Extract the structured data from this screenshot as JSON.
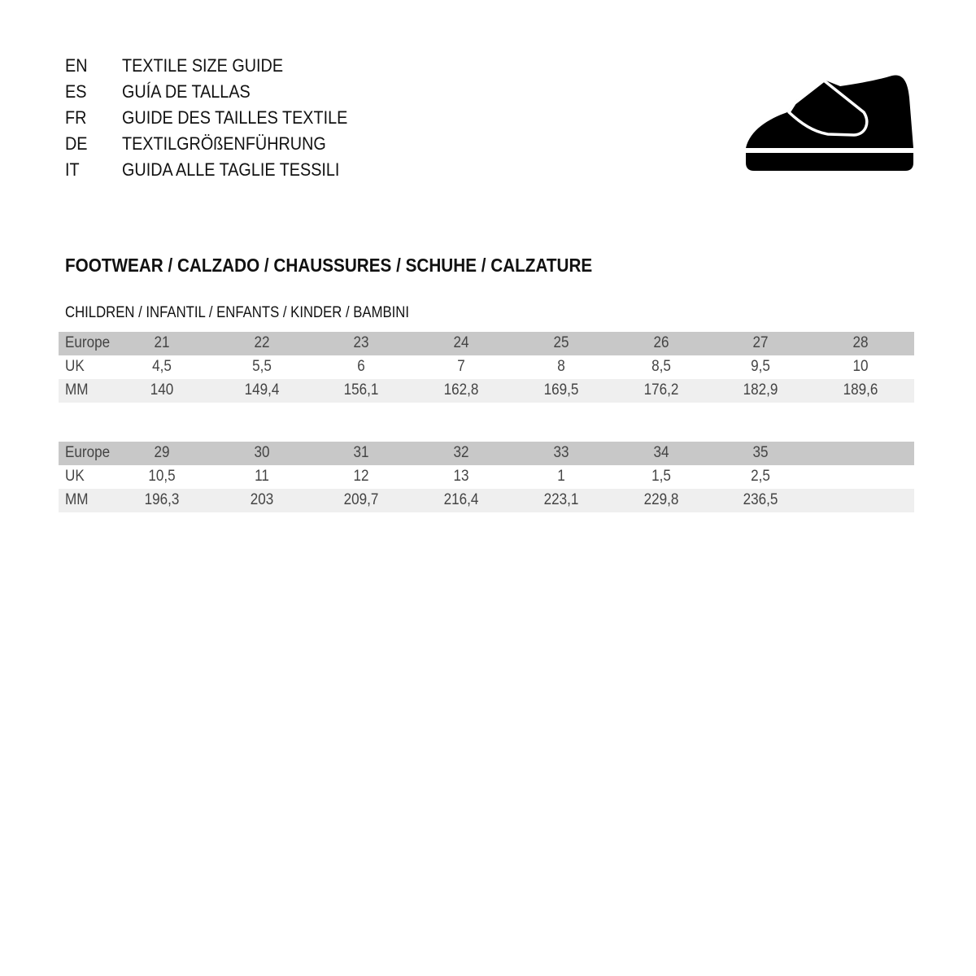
{
  "languages": [
    {
      "code": "EN",
      "text": "TEXTILE SIZE GUIDE"
    },
    {
      "code": "ES",
      "text": "GUÍA DE TALLAS"
    },
    {
      "code": "FR",
      "text": "GUIDE DES TAILLES TEXTILE"
    },
    {
      "code": "DE",
      "text": "TEXTILGRÖßENFÜHRUNG"
    },
    {
      "code": "IT",
      "text": "GUIDA ALLE TAGLIE TESSILI"
    }
  ],
  "icon": "shoe-icon",
  "title": "FOOTWEAR / CALZADO / CHAUSSURES / SCHUHE / CALZATURE",
  "subtitle": "CHILDREN / INFANTIL / ENFANTS / KINDER / BAMBINI",
  "tables": [
    {
      "rows": [
        {
          "label": "Europe",
          "values": [
            "21",
            "22",
            "23",
            "24",
            "25",
            "26",
            "27",
            "28"
          ]
        },
        {
          "label": "UK",
          "values": [
            "4,5",
            "5,5",
            "6",
            "7",
            "8",
            "8,5",
            "9,5",
            "10"
          ]
        },
        {
          "label": "MM",
          "values": [
            "140",
            "149,4",
            "156,1",
            "162,8",
            "169,5",
            "176,2",
            "182,9",
            "189,6"
          ]
        }
      ]
    },
    {
      "rows": [
        {
          "label": "Europe",
          "values": [
            "29",
            "30",
            "31",
            "32",
            "33",
            "34",
            "35"
          ]
        },
        {
          "label": "UK",
          "values": [
            "10,5",
            "11",
            "12",
            "13",
            "1",
            "1,5",
            "2,5"
          ]
        },
        {
          "label": "MM",
          "values": [
            "196,3",
            "203",
            "209,7",
            "216,4",
            "223,1",
            "229,8",
            "236,5"
          ]
        }
      ]
    }
  ]
}
